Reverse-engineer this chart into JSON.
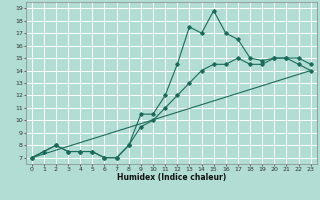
{
  "xlabel": "Humidex (Indice chaleur)",
  "ylabel": "",
  "xlim": [
    -0.5,
    23.5
  ],
  "ylim": [
    6.5,
    19.5
  ],
  "xticks": [
    0,
    1,
    2,
    3,
    4,
    5,
    6,
    7,
    8,
    9,
    10,
    11,
    12,
    13,
    14,
    15,
    16,
    17,
    18,
    19,
    20,
    21,
    22,
    23
  ],
  "yticks": [
    7,
    8,
    9,
    10,
    11,
    12,
    13,
    14,
    15,
    16,
    17,
    18,
    19
  ],
  "background_color": "#b2ddd4",
  "grid_color": "#ffffff",
  "line_color": "#1a6b5a",
  "line1_x": [
    0,
    1,
    2,
    3,
    4,
    5,
    6,
    7,
    8,
    9,
    10,
    11,
    12,
    13,
    14,
    15,
    16,
    17,
    18,
    19,
    20,
    21,
    22,
    23
  ],
  "line1_y": [
    7.0,
    7.5,
    8.0,
    7.5,
    7.5,
    7.5,
    7.0,
    7.0,
    8.0,
    10.5,
    10.5,
    12.0,
    14.5,
    17.5,
    17.0,
    18.8,
    17.0,
    16.5,
    15.0,
    14.8,
    15.0,
    15.0,
    15.0,
    14.5
  ],
  "line2_x": [
    0,
    1,
    2,
    3,
    4,
    5,
    6,
    7,
    8,
    9,
    10,
    11,
    12,
    13,
    14,
    15,
    16,
    17,
    18,
    19,
    20,
    21,
    22,
    23
  ],
  "line2_y": [
    7.0,
    7.5,
    8.0,
    7.5,
    7.5,
    7.5,
    7.0,
    7.0,
    8.0,
    9.5,
    10.0,
    11.0,
    12.0,
    13.0,
    14.0,
    14.5,
    14.5,
    15.0,
    14.5,
    14.5,
    15.0,
    15.0,
    14.5,
    14.0
  ],
  "line3_x": [
    0,
    23
  ],
  "line3_y": [
    7.0,
    14.0
  ]
}
